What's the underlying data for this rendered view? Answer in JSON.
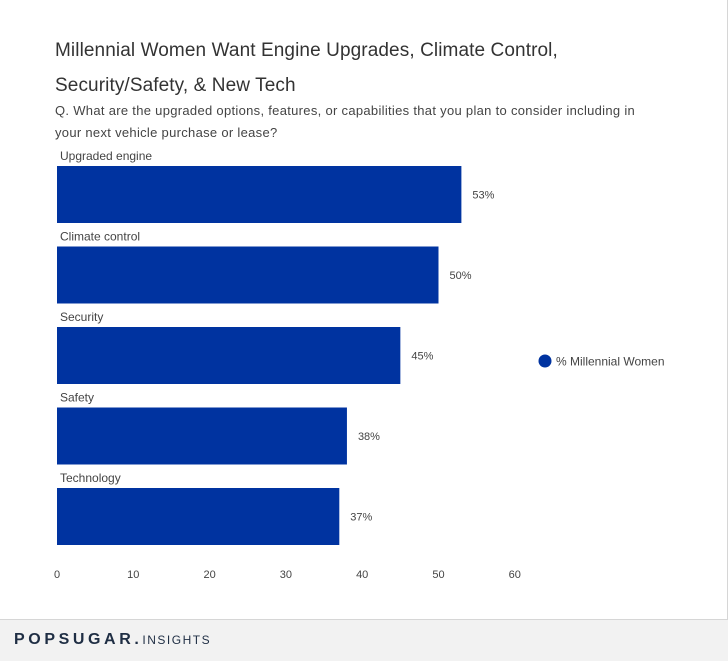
{
  "chart_data": {
    "type": "bar",
    "orientation": "horizontal",
    "title": [
      "Millennial Women Want Engine Upgrades, Climate Control,",
      "Security/Safety, & New Tech"
    ],
    "subtitle": [
      "Q. What are the upgraded options, features, or capabilities that you plan to consider including in",
      "your next vehicle purchase or lease?"
    ],
    "categories": [
      "Upgraded engine",
      "Climate control",
      "Security",
      "Safety",
      "Technology"
    ],
    "series": [
      {
        "name": "% Millennial Women",
        "values": [
          53,
          50,
          45,
          38,
          37
        ],
        "color": "#0033a0"
      }
    ],
    "value_labels": [
      "53%",
      "50%",
      "45%",
      "38%",
      "37%"
    ],
    "xlim": [
      0,
      60
    ],
    "xticks": [
      0,
      10,
      20,
      30,
      40,
      50,
      60
    ],
    "xticklabels": [
      "0",
      "10",
      "20",
      "30",
      "40",
      "50",
      "60"
    ],
    "grid": false,
    "legend": {
      "placement": "right",
      "marker": "circle"
    }
  },
  "footer": {
    "brand": "POPSUGAR.",
    "sub": "INSIGHTS"
  }
}
